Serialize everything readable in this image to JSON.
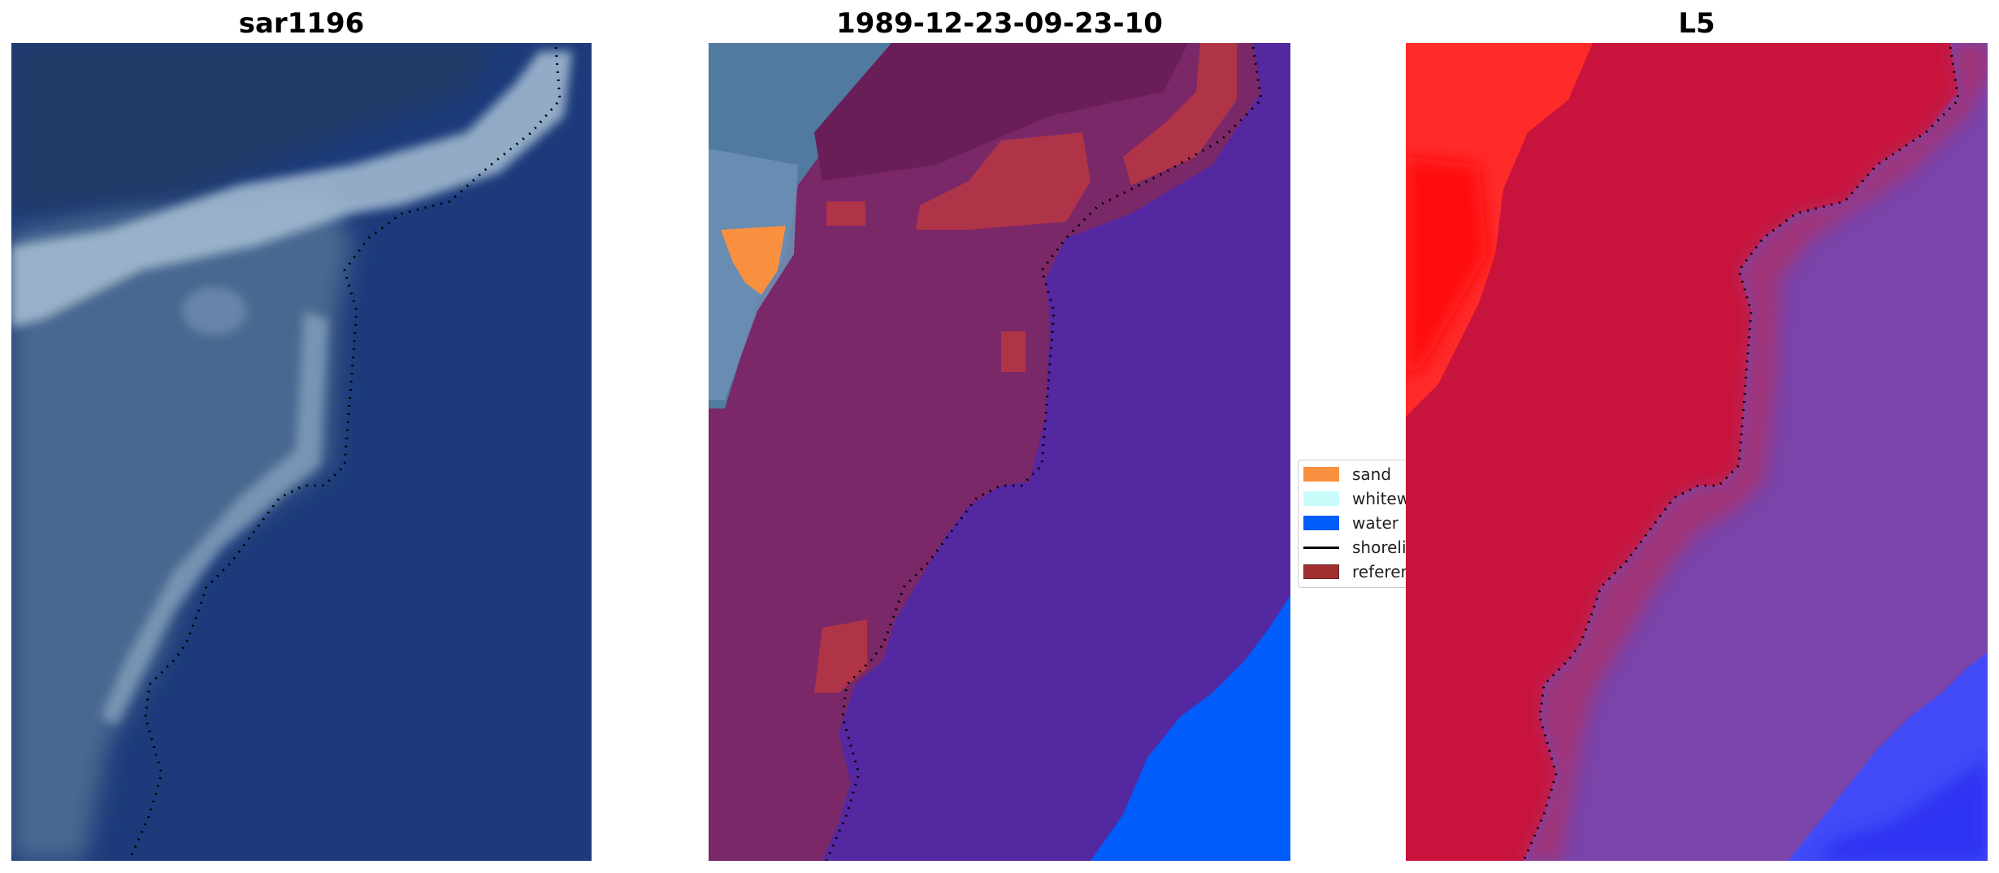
{
  "panels": [
    {
      "title": "sar1196"
    },
    {
      "title": "1989-12-23-09-23-10"
    },
    {
      "title": "L5"
    }
  ],
  "legend": {
    "items": [
      {
        "label": "sand",
        "color": "#f99040",
        "kind": "patch"
      },
      {
        "label": "whitewater",
        "color": "#c8fcfa",
        "kind": "patch"
      },
      {
        "label": "water",
        "color": "#005cfa",
        "kind": "patch"
      },
      {
        "label": "shoreline",
        "color": "#000000",
        "kind": "line"
      },
      {
        "label": "reference",
        "color": "#a03030",
        "kind": "patch"
      }
    ]
  },
  "colors": {
    "rgb_water": "#1e3c78",
    "rgb_land": "#48648c",
    "class_land": "#7a2868",
    "class_water": "#5428a0",
    "class_ocean": "#005cfa",
    "class_reference": "#b03448",
    "false_land": "#c8143c",
    "false_water": "#7040a8",
    "false_bright": "#ff1010",
    "false_ocean": "#3c4cff"
  }
}
